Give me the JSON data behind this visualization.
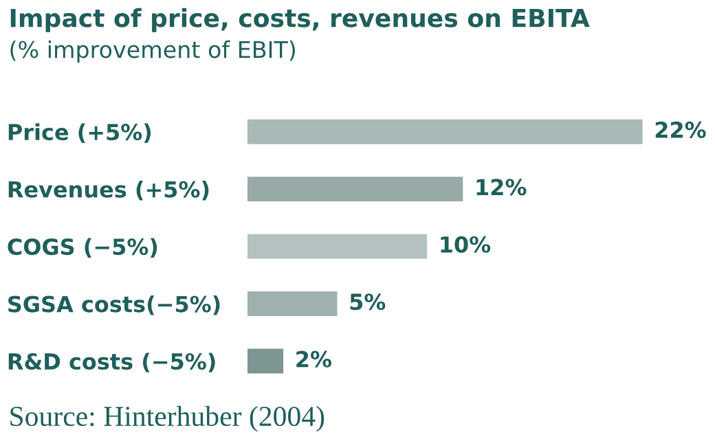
{
  "chart_data": {
    "type": "bar",
    "orientation": "horizontal",
    "title": "Impact of price, costs, revenues on EBITA",
    "subtitle": "(% improvement of EBIT)",
    "categories": [
      "Price (+5%)",
      "Revenues (+5%)",
      "COGS (−5%)",
      "SGSA costs(−5%)",
      "R&D costs (−5%)"
    ],
    "values": [
      22,
      12,
      10,
      5,
      2
    ],
    "colors": [
      "#a9b9b7",
      "#97aaa8",
      "#b3c2c0",
      "#9fb1af",
      "#7d9593"
    ],
    "value_labels": [
      "22%",
      "12%",
      "10%",
      "5%",
      "2%"
    ],
    "annotations": [
      "Source: Hinterhuber (2004)"
    ],
    "grid": false,
    "legend": false
  }
}
